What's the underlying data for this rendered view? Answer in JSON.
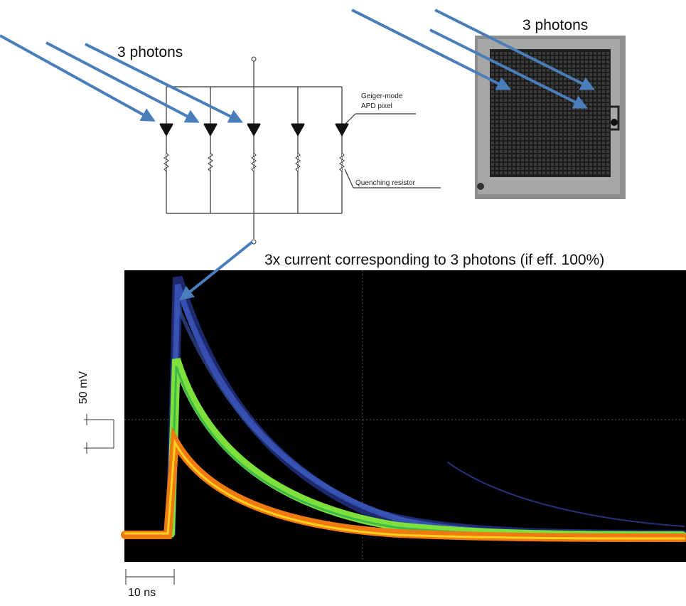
{
  "circuit": {
    "photons_label": "3 photons",
    "pixel_label_line1": "Geiger-mode",
    "pixel_label_line2": "APD pixel",
    "resistor_label": "Quenching resistor"
  },
  "chip": {
    "photons_label": "3 photons"
  },
  "scope": {
    "annotation": "3x current corresponding to 3 photons (if eff. 100%)",
    "vertical_scale": "50 mV",
    "horizontal_scale": "10 ns"
  }
}
